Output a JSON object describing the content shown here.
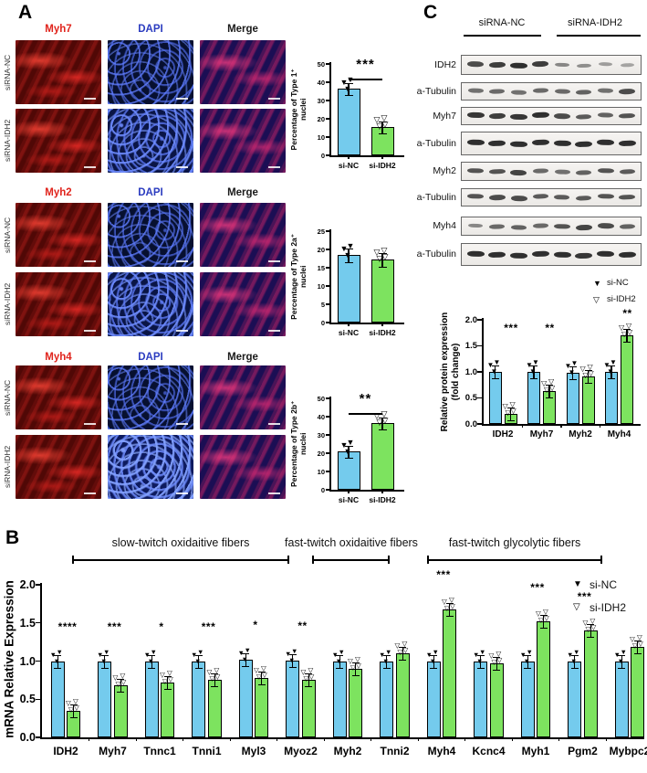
{
  "colors": {
    "si_nc": "#74CBED",
    "si_idh2": "#7DE35F",
    "marker_red": "#E0241C",
    "dapi_blue": "#2B3CC0"
  },
  "panel_a": {
    "label": "A",
    "groups": [
      {
        "marker": "Myh7",
        "dapi": "DAPI",
        "merge": "Merge",
        "row_labels": [
          "siRNA-NC",
          "siRNA-IDH2"
        ]
      },
      {
        "marker": "Myh2",
        "dapi": "DAPI",
        "merge": "Merge",
        "row_labels": [
          "siRNA-NC",
          "siRNA-IDH2"
        ]
      },
      {
        "marker": "Myh4",
        "dapi": "DAPI",
        "merge": "Merge",
        "row_labels": [
          "siRNA-NC",
          "siRNA-IDH2"
        ]
      }
    ]
  },
  "panel_b": {
    "label": "B"
  },
  "panel_c": {
    "label": "C",
    "group_headers": [
      "siRNA-NC",
      "siRNA-IDH2"
    ],
    "blots": [
      {
        "label": "IDH2",
        "bands": [
          0.75,
          0.85,
          0.95,
          0.85,
          0.35,
          0.3,
          0.2,
          0.15
        ]
      },
      {
        "label": "a-Tubulin",
        "bands": [
          0.5,
          0.55,
          0.5,
          0.55,
          0.55,
          0.6,
          0.5,
          0.75
        ]
      },
      {
        "label": "Myh7",
        "bands": [
          0.9,
          0.85,
          0.9,
          0.95,
          0.75,
          0.65,
          0.6,
          0.7
        ]
      },
      {
        "label": "a-Tubulin",
        "bands": [
          0.95,
          0.95,
          0.95,
          0.95,
          0.95,
          0.95,
          0.95,
          0.95
        ]
      },
      {
        "label": "Myh2",
        "bands": [
          0.7,
          0.7,
          0.8,
          0.55,
          0.5,
          0.6,
          0.7,
          0.65
        ]
      },
      {
        "label": "a-Tubulin",
        "bands": [
          0.7,
          0.75,
          0.75,
          0.65,
          0.65,
          0.65,
          0.7,
          0.7
        ]
      },
      {
        "label": "Myh4",
        "bands": [
          0.35,
          0.55,
          0.6,
          0.55,
          0.7,
          0.8,
          0.75,
          0.6
        ]
      },
      {
        "label": "a-Tubulin",
        "bands": [
          0.95,
          0.95,
          0.95,
          0.95,
          0.95,
          0.9,
          0.95,
          0.95
        ]
      }
    ]
  },
  "chart_data": [
    {
      "id": "type1-nuclei",
      "type": "bar",
      "ylabel_lines": [
        "Percentage of Type 1⁺",
        "nuclei"
      ],
      "categories": [
        "si-NC",
        "si-IDH2"
      ],
      "values": [
        36.5,
        15.5
      ],
      "errors": [
        2.5,
        1.5
      ],
      "ylim": [
        0,
        50
      ],
      "yticks": [
        0,
        10,
        20,
        30,
        40,
        50
      ],
      "significance": "***"
    },
    {
      "id": "type2a-nuclei",
      "type": "bar",
      "ylabel_lines": [
        "Percentage of Type 2a⁺",
        "nuclei"
      ],
      "categories": [
        "si-NC",
        "si-IDH2"
      ],
      "values": [
        18.5,
        17.2
      ],
      "errors": [
        1.5,
        1.5
      ],
      "ylim": [
        0,
        25
      ],
      "yticks": [
        0,
        5,
        10,
        15,
        20,
        25
      ],
      "significance": null
    },
    {
      "id": "type2b-nuclei",
      "type": "bar",
      "ylabel_lines": [
        "Percentage of Type 2b⁺",
        "nuclei"
      ],
      "categories": [
        "si-NC",
        "si-IDH2"
      ],
      "values": [
        21,
        36.5
      ],
      "errors": [
        2,
        2.5
      ],
      "ylim": [
        0,
        50
      ],
      "yticks": [
        0,
        10,
        20,
        30,
        40,
        50
      ],
      "significance": "**"
    },
    {
      "id": "protein-expression",
      "type": "grouped-bar",
      "ylabel_lines": [
        "Relative protein expression",
        "(fold change)"
      ],
      "categories": [
        "IDH2",
        "Myh7",
        "Myh2",
        "Myh4"
      ],
      "series": [
        {
          "name": "si-NC",
          "values": [
            1.0,
            1.0,
            0.99,
            1.0
          ]
        },
        {
          "name": "si-IDH2",
          "values": [
            0.2,
            0.63,
            0.91,
            1.7
          ]
        }
      ],
      "significance": [
        "***",
        "**",
        "",
        "**"
      ],
      "ylim": [
        0,
        2
      ],
      "yticks": [
        "0.0",
        "0.5",
        "1.0",
        "1.5",
        "2.0"
      ],
      "legend": [
        {
          "symbol": "filled-triangle-down",
          "label": "si-NC"
        },
        {
          "symbol": "open-triangle-down",
          "label": "si-IDH2"
        }
      ]
    },
    {
      "id": "mrna-expression",
      "type": "grouped-bar",
      "ylabel": "mRNA Relative Expression",
      "categories": [
        "IDH2",
        "Myh7",
        "Tnnc1",
        "Tnni1",
        "Myl3",
        "Myoz2",
        "Myh2",
        "Tnni2",
        "Myh4",
        "Kcnc4",
        "Myh1",
        "Pgm2",
        "Mybpc2"
      ],
      "series": [
        {
          "name": "si-NC",
          "values": [
            1.0,
            1.0,
            1.0,
            1.0,
            1.02,
            1.01,
            1.0,
            1.0,
            1.0,
            1.0,
            1.0,
            1.0,
            1.0
          ]
        },
        {
          "name": "si-IDH2",
          "values": [
            0.35,
            0.68,
            0.72,
            0.75,
            0.78,
            0.76,
            0.9,
            1.1,
            1.68,
            0.97,
            1.52,
            1.4,
            1.18
          ]
        }
      ],
      "significance": [
        "****",
        "***",
        "*",
        "***",
        "*",
        "**",
        "",
        "",
        "***",
        "",
        "***",
        "***",
        ""
      ],
      "fiber_groups": [
        {
          "label": "slow-twitch oxidaitive fibers",
          "from": "IDH2",
          "to": "Myoz2"
        },
        {
          "label": "fast-twitch oxidaitive fibers",
          "from": "Myh2",
          "to": "Tnni2"
        },
        {
          "label": "fast-twitch glycolytic fibers",
          "from": "Myh4",
          "to": "Mybpc2"
        }
      ],
      "ylim": [
        0,
        2
      ],
      "yticks": [
        "0.0",
        "0.5",
        "1.0",
        "1.5",
        "2.0"
      ],
      "legend": [
        {
          "symbol": "filled-triangle-down",
          "label": "si-NC"
        },
        {
          "symbol": "open-triangle-down",
          "label": "si-IDH2"
        }
      ]
    }
  ]
}
